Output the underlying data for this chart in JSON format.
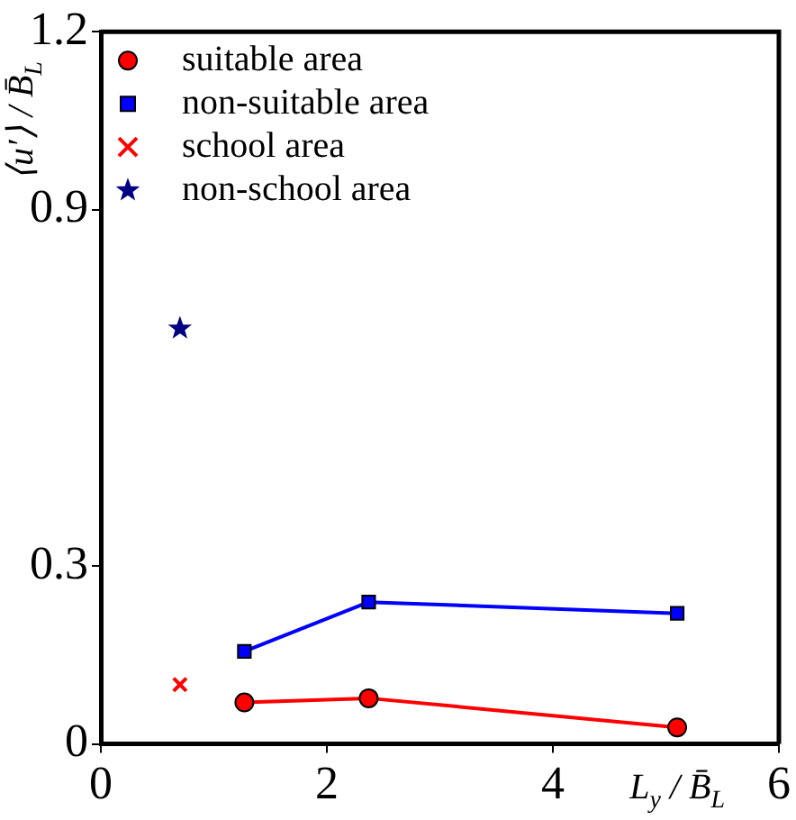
{
  "chart_data": {
    "type": "line",
    "xlabel": "L$_{y}$ / B̄$_{L}$",
    "ylabel": "⟨u′⟩ / B̄$_{L}$",
    "xlim": [
      0,
      6
    ],
    "xticks": [
      0,
      2,
      4,
      6
    ],
    "ylim": [
      0,
      1.2
    ],
    "yticks": [
      0,
      0.3,
      0.9,
      1.2
    ],
    "grid": false,
    "legend": "top left",
    "series": [
      {
        "name": "suitable area",
        "marker": "circle",
        "color": "#ff0000",
        "x": [
          1.27,
          2.37,
          5.1
        ],
        "values": [
          0.07,
          0.077,
          0.028
        ]
      },
      {
        "name": "non-suitable area",
        "marker": "square",
        "color": "#0000ff",
        "x": [
          1.27,
          2.37,
          5.1
        ],
        "values": [
          0.156,
          0.239,
          0.22
        ]
      },
      {
        "name": "school area",
        "type": "scatter",
        "marker": "cross",
        "color": "#ff0000",
        "x": [
          0.7
        ],
        "values": [
          0.1
        ]
      },
      {
        "name": "non-school area",
        "type": "scatter",
        "marker": "star",
        "color": "#000080",
        "x": [
          0.7
        ],
        "values": [
          0.7
        ]
      }
    ]
  }
}
